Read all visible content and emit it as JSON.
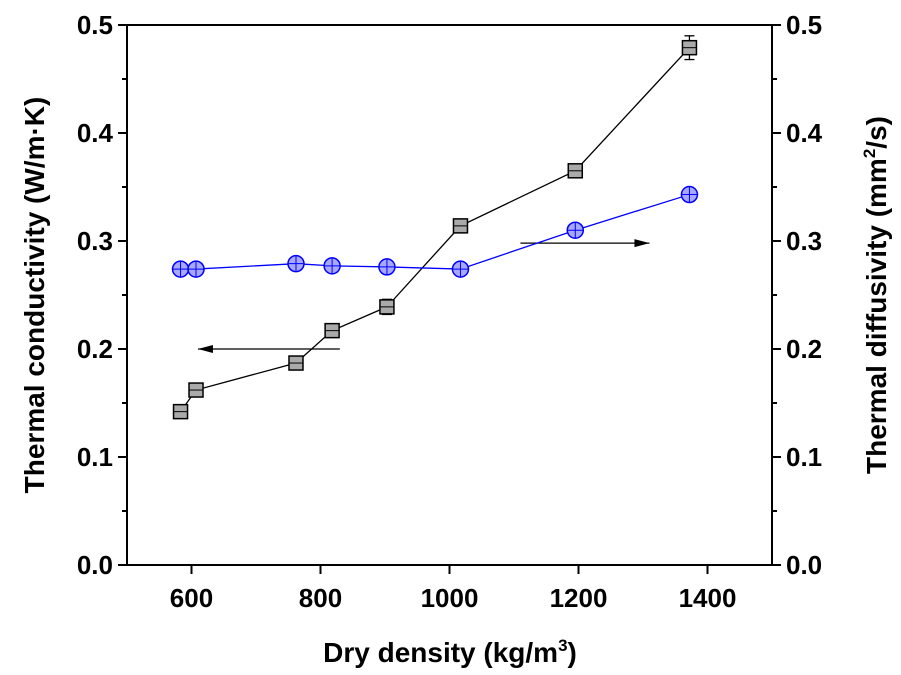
{
  "chart_data": {
    "type": "scatter",
    "xlabel": "Dry density (kg/m",
    "xlabel_sup": "3",
    "xlabel_end": ")",
    "ylabel_left": "Thermal conductivity (W/m·K)",
    "ylabel_right": "Thermal diffusivity (mm",
    "ylabel_right_sup": "2",
    "ylabel_right_end": "/s)",
    "xlim": [
      500,
      1500
    ],
    "ylim_left": [
      0.0,
      0.5
    ],
    "ylim_right": [
      0.0,
      0.5
    ],
    "x_ticks": [
      "600",
      "800",
      "1000",
      "1200",
      "1400"
    ],
    "y_left_ticks": [
      "0.0",
      "0.1",
      "0.2",
      "0.3",
      "0.4",
      "0.5"
    ],
    "y_right_ticks": [
      "0.0",
      "0.1",
      "0.2",
      "0.3",
      "0.4",
      "0.5"
    ],
    "grid": false,
    "series": [
      {
        "axis": "left",
        "marker": "square",
        "color": "#000000",
        "fill": "#aaaaaa",
        "x": [
          583,
          607,
          762,
          818,
          903,
          1017,
          1195,
          1372
        ],
        "y": [
          0.142,
          0.162,
          0.187,
          0.217,
          0.239,
          0.314,
          0.365,
          0.479
        ],
        "error": [
          0.004,
          0.004,
          0.004,
          0.006,
          0.007,
          0.006,
          0.005,
          0.011
        ]
      },
      {
        "axis": "right",
        "marker": "circle",
        "color": "#0000ff",
        "fill": "#a8a8ff",
        "x": [
          583,
          607,
          762,
          818,
          903,
          1017,
          1195,
          1372
        ],
        "y": [
          0.274,
          0.274,
          0.279,
          0.277,
          0.276,
          0.274,
          0.31,
          0.343
        ]
      }
    ],
    "annotations": [
      {
        "type": "arrow",
        "direction": "left",
        "from": [
          830,
          0.2
        ],
        "to": [
          610,
          0.2
        ],
        "points_to": "left axis"
      },
      {
        "type": "arrow",
        "direction": "right",
        "from": [
          1110,
          0.298
        ],
        "to": [
          1310,
          0.298
        ],
        "points_to": "right axis"
      }
    ]
  }
}
